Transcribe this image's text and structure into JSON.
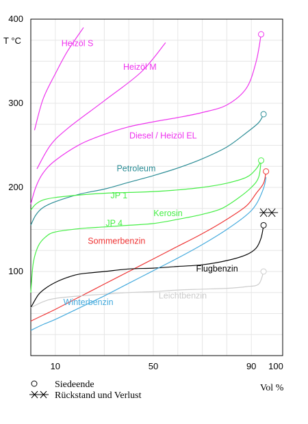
{
  "chart_data": {
    "type": "line",
    "y_unit_label": "T  °C",
    "x_unit_label": "Vol %",
    "xlim": [
      0,
      100
    ],
    "ylim": [
      0,
      400
    ],
    "grid": true,
    "y_ticks": [
      {
        "value": 100,
        "label": "100"
      },
      {
        "value": 200,
        "label": "200"
      },
      {
        "value": 300,
        "label": "300"
      },
      {
        "value": 400,
        "label": "400"
      }
    ],
    "x_ticks": [
      {
        "value": 10,
        "label": "10"
      },
      {
        "value": 50,
        "label": "50"
      },
      {
        "value": 90,
        "label": "90"
      },
      {
        "value": 100,
        "label": "100"
      }
    ],
    "series": [
      {
        "name": "Heizöl S",
        "color": "#ee33ee",
        "label_at": [
          19,
          368
        ],
        "end_marker": "none",
        "points": [
          [
            1.5,
            268
          ],
          [
            5,
            305
          ],
          [
            10,
            335
          ],
          [
            15,
            362
          ],
          [
            21.5,
            390
          ]
        ]
      },
      {
        "name": "Heizöl M",
        "color": "#ee33ee",
        "label_at": [
          44.5,
          340
        ],
        "end_marker": "none",
        "points": [
          [
            2.5,
            222
          ],
          [
            8,
            250
          ],
          [
            15,
            270
          ],
          [
            30,
            303
          ],
          [
            45,
            337
          ],
          [
            55,
            372
          ]
        ]
      },
      {
        "name": "Diesel / Heizöl EL",
        "color": "#ee33ee",
        "label_at": [
          54,
          258
        ],
        "end_marker": "circle",
        "points": [
          [
            0,
            180
          ],
          [
            2,
            200
          ],
          [
            5,
            217
          ],
          [
            10,
            232
          ],
          [
            20,
            251
          ],
          [
            30,
            263
          ],
          [
            40,
            272
          ],
          [
            50,
            278
          ],
          [
            60,
            283
          ],
          [
            70,
            289
          ],
          [
            80,
            298
          ],
          [
            88,
            318
          ],
          [
            92,
            350
          ],
          [
            94,
            382
          ]
        ]
      },
      {
        "name": "Petroleum",
        "color": "#2a8c95",
        "label_at": [
          43,
          219
        ],
        "end_marker": "circle",
        "points": [
          [
            0,
            155
          ],
          [
            2,
            167
          ],
          [
            5,
            176
          ],
          [
            10,
            183
          ],
          [
            20,
            192
          ],
          [
            30,
            198
          ],
          [
            40,
            206
          ],
          [
            50,
            214
          ],
          [
            60,
            223
          ],
          [
            70,
            234
          ],
          [
            80,
            248
          ],
          [
            88,
            265
          ],
          [
            93,
            277
          ],
          [
            95,
            287
          ]
        ]
      },
      {
        "name": "JP 1",
        "color": "#44ee44",
        "label_at": [
          36,
          187
        ],
        "end_marker": "circle",
        "points": [
          [
            0,
            173
          ],
          [
            2,
            180
          ],
          [
            5,
            185
          ],
          [
            10,
            188
          ],
          [
            20,
            191
          ],
          [
            30,
            193
          ],
          [
            40,
            194
          ],
          [
            50,
            195
          ],
          [
            60,
            197
          ],
          [
            70,
            200
          ],
          [
            80,
            205
          ],
          [
            88,
            212
          ],
          [
            92,
            222
          ],
          [
            94,
            232
          ]
        ]
      },
      {
        "name": "Kerosin",
        "color": "#44ee44",
        "label_at": [
          56,
          166
        ],
        "end_marker": "none",
        "points": [
          [
            0,
            75
          ],
          [
            1,
            110
          ],
          [
            3,
            130
          ],
          [
            6,
            141
          ],
          [
            10,
            147
          ],
          [
            20,
            151
          ],
          [
            30,
            153
          ],
          [
            40,
            155
          ],
          [
            50,
            157
          ],
          [
            60,
            162
          ],
          [
            70,
            168
          ],
          [
            78,
            175
          ],
          [
            85,
            188
          ],
          [
            90,
            200
          ],
          [
            93,
            212
          ],
          [
            94,
            232
          ]
        ]
      },
      {
        "name": "JP 4",
        "color": "#44ee44",
        "label_at": [
          34,
          154
        ],
        "end_marker": "none",
        "points": []
      },
      {
        "name": "Sommerbenzin",
        "color": "#ee3333",
        "label_at": [
          35,
          133
        ],
        "end_marker": "circle",
        "points": [
          [
            0,
            41
          ],
          [
            5,
            48
          ],
          [
            10,
            55
          ],
          [
            20,
            70
          ],
          [
            30,
            85
          ],
          [
            40,
            100
          ],
          [
            50,
            115
          ],
          [
            60,
            130
          ],
          [
            70,
            145
          ],
          [
            80,
            162
          ],
          [
            88,
            178
          ],
          [
            92,
            193
          ],
          [
            95,
            205
          ],
          [
            96,
            219
          ]
        ]
      },
      {
        "name": "Flugbenzin",
        "color": "#000000",
        "label_at": [
          76,
          100
        ],
        "end_marker": "circle",
        "points": [
          [
            0,
            57
          ],
          [
            3,
            72
          ],
          [
            6,
            80
          ],
          [
            10,
            87
          ],
          [
            15,
            93
          ],
          [
            20,
            97
          ],
          [
            30,
            100
          ],
          [
            40,
            103
          ],
          [
            50,
            104
          ],
          [
            60,
            106
          ],
          [
            70,
            108
          ],
          [
            80,
            113
          ],
          [
            88,
            120
          ],
          [
            92,
            128
          ],
          [
            94,
            140
          ],
          [
            95,
            155
          ]
        ]
      },
      {
        "name": "Leichtbenzin",
        "color": "#cccccc",
        "label_at": [
          62,
          68
        ],
        "end_marker": "circle",
        "points": [
          [
            0,
            57
          ],
          [
            5,
            64
          ],
          [
            10,
            68
          ],
          [
            20,
            71
          ],
          [
            30,
            73
          ],
          [
            40,
            75
          ],
          [
            50,
            76
          ],
          [
            60,
            78
          ],
          [
            70,
            79
          ],
          [
            80,
            80
          ],
          [
            88,
            82
          ],
          [
            93,
            85
          ],
          [
            95,
            100
          ]
        ]
      },
      {
        "name": "Winterbenzin",
        "color": "#44aadd",
        "label_at": [
          23.5,
          60
        ],
        "end_marker": "none",
        "points": [
          [
            0,
            30
          ],
          [
            5,
            37
          ],
          [
            10,
            43
          ],
          [
            20,
            57
          ],
          [
            30,
            71
          ],
          [
            40,
            86
          ],
          [
            50,
            101
          ],
          [
            60,
            116
          ],
          [
            70,
            132
          ],
          [
            80,
            150
          ],
          [
            88,
            167
          ],
          [
            92,
            180
          ],
          [
            95,
            199
          ],
          [
            96,
            212
          ]
        ]
      }
    ],
    "residue_marker": {
      "at": [
        95.3,
        170
      ]
    }
  },
  "legend": {
    "end_boiling_label": "Siedeende",
    "residue_label": "Rückstand und Verlust"
  }
}
